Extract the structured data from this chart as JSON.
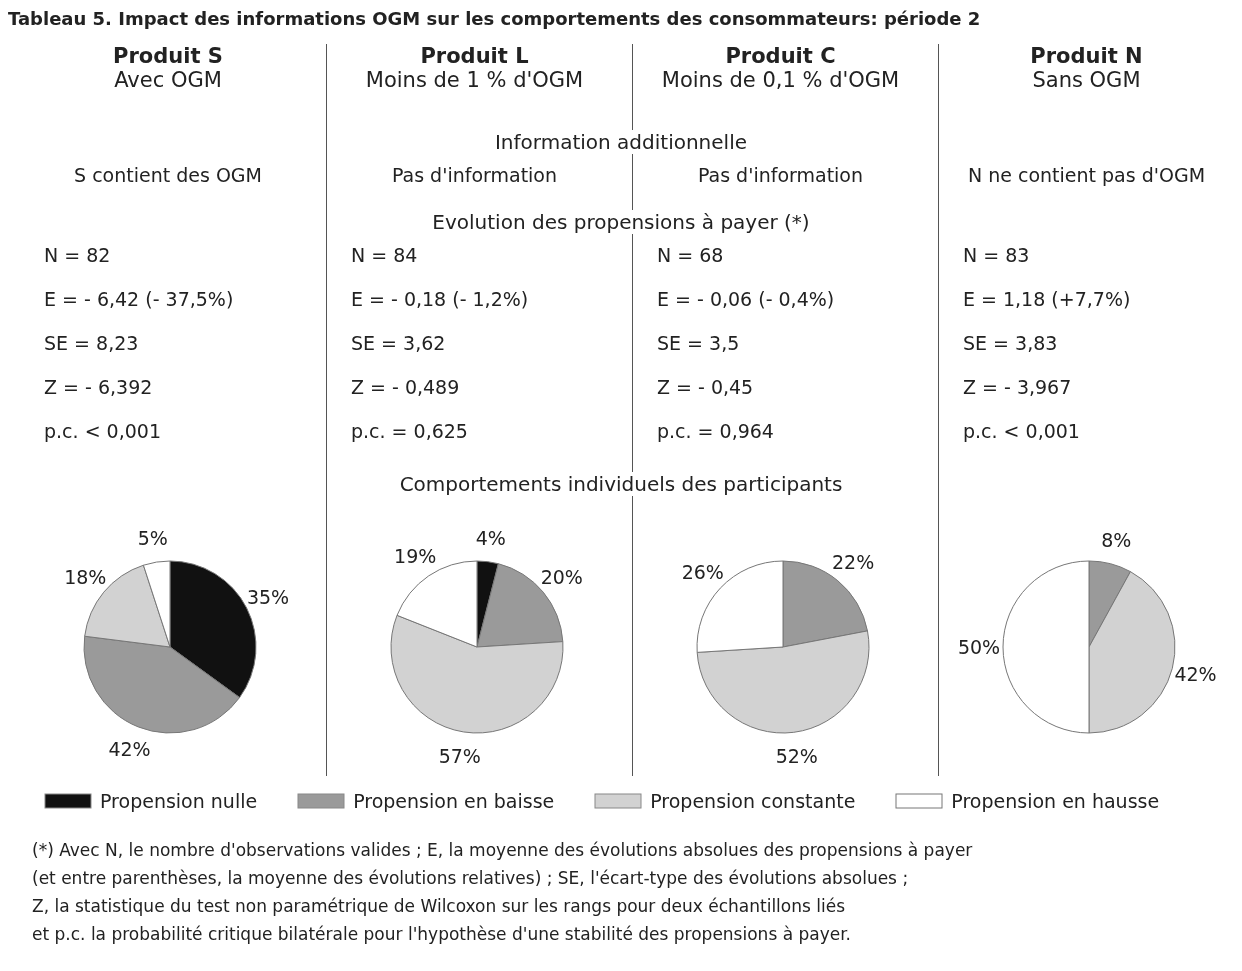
{
  "chart_data": [
    {
      "type": "other",
      "title": "Tableau 5. Impact des informations OGM sur les comportements des consommateurs: période 2",
      "annotations": [
        "Information additionnelle",
        "Evolution des propensions à payer (*)",
        "Comportements individuels des participants",
        "(*) Avec N, le nombre d'observations valides ; E, la moyenne des évolutions absolues des propensions à payer",
        "(et entre parenthèses, la moyenne des évolutions relatives) ; SE, l'écart-type des évolutions absolues ;",
        "Z, la statistique du test non paramétrique de Wilcoxon sur les rangs pour deux échantillons liés",
        "et p.c. la probabilité critique bilatérale pour l'hypothèse d'une stabilité des propensions à payer."
      ]
    },
    {
      "type": "pie",
      "title": "Produit S",
      "subtitle": "Avec OGM",
      "annotations": [
        "S contient des OGM",
        "N = 82",
        "E = - 6,42 (- 37,5%)",
        "SE = 8,23",
        "Z = - 6,392",
        "p.c. < 0,001"
      ],
      "categories": [
        "Propension nulle",
        "Propension en baisse",
        "Propension constante",
        "Propension en hausse"
      ],
      "values": [
        35,
        42,
        18,
        5
      ],
      "value_labels": [
        "35%",
        "42%",
        "18%",
        "5%"
      ],
      "colors": [
        "#111111",
        "#9a9a9a",
        "#d2d2d2",
        "#ffffff"
      ],
      "legend": "bottom"
    },
    {
      "type": "pie",
      "title": "Produit L",
      "subtitle": "Moins de 1 % d'OGM",
      "annotations": [
        "Pas d'information",
        "N = 84",
        "E = - 0,18 (- 1,2%)",
        "SE = 3,62",
        "Z = - 0,489",
        "p.c. = 0,625"
      ],
      "categories": [
        null,
        null,
        null,
        null
      ],
      "values": [
        4,
        20,
        57,
        19
      ],
      "value_labels": [
        "4%",
        "20%",
        "57%",
        "19%"
      ],
      "colors": [
        "#111111",
        "#9a9a9a",
        "#d2d2d2",
        "#ffffff"
      ]
    },
    {
      "type": "pie",
      "title": "Produit C",
      "subtitle": "Moins de 0,1 % d'OGM",
      "annotations": [
        "Pas d'information",
        "N = 68",
        "E = - 0,06 (- 0,4%)",
        "SE = 3,5",
        "Z = - 0,45",
        "p.c. = 0,964"
      ],
      "categories": [
        null,
        null,
        null,
        null
      ],
      "values": [
        0,
        22,
        52,
        26
      ],
      "value_labels": [
        null,
        "22%",
        "52%",
        "26%"
      ],
      "colors": [
        "#111111",
        "#9a9a9a",
        "#d2d2d2",
        "#ffffff"
      ]
    },
    {
      "type": "pie",
      "title": "Produit N",
      "subtitle": "Sans OGM",
      "annotations": [
        "N ne contient pas d'OGM",
        "N = 83",
        "E = 1,18 (+7,7%)",
        "SE = 3,83",
        "Z = - 3,967",
        "p.c. < 0,001"
      ],
      "categories": [
        null,
        null,
        null,
        null
      ],
      "values": [
        0,
        8,
        42,
        50
      ],
      "value_labels": [
        null,
        "8%",
        "42%",
        "50%"
      ],
      "colors": [
        "#111111",
        "#9a9a9a",
        "#d2d2d2",
        "#ffffff"
      ]
    }
  ]
}
